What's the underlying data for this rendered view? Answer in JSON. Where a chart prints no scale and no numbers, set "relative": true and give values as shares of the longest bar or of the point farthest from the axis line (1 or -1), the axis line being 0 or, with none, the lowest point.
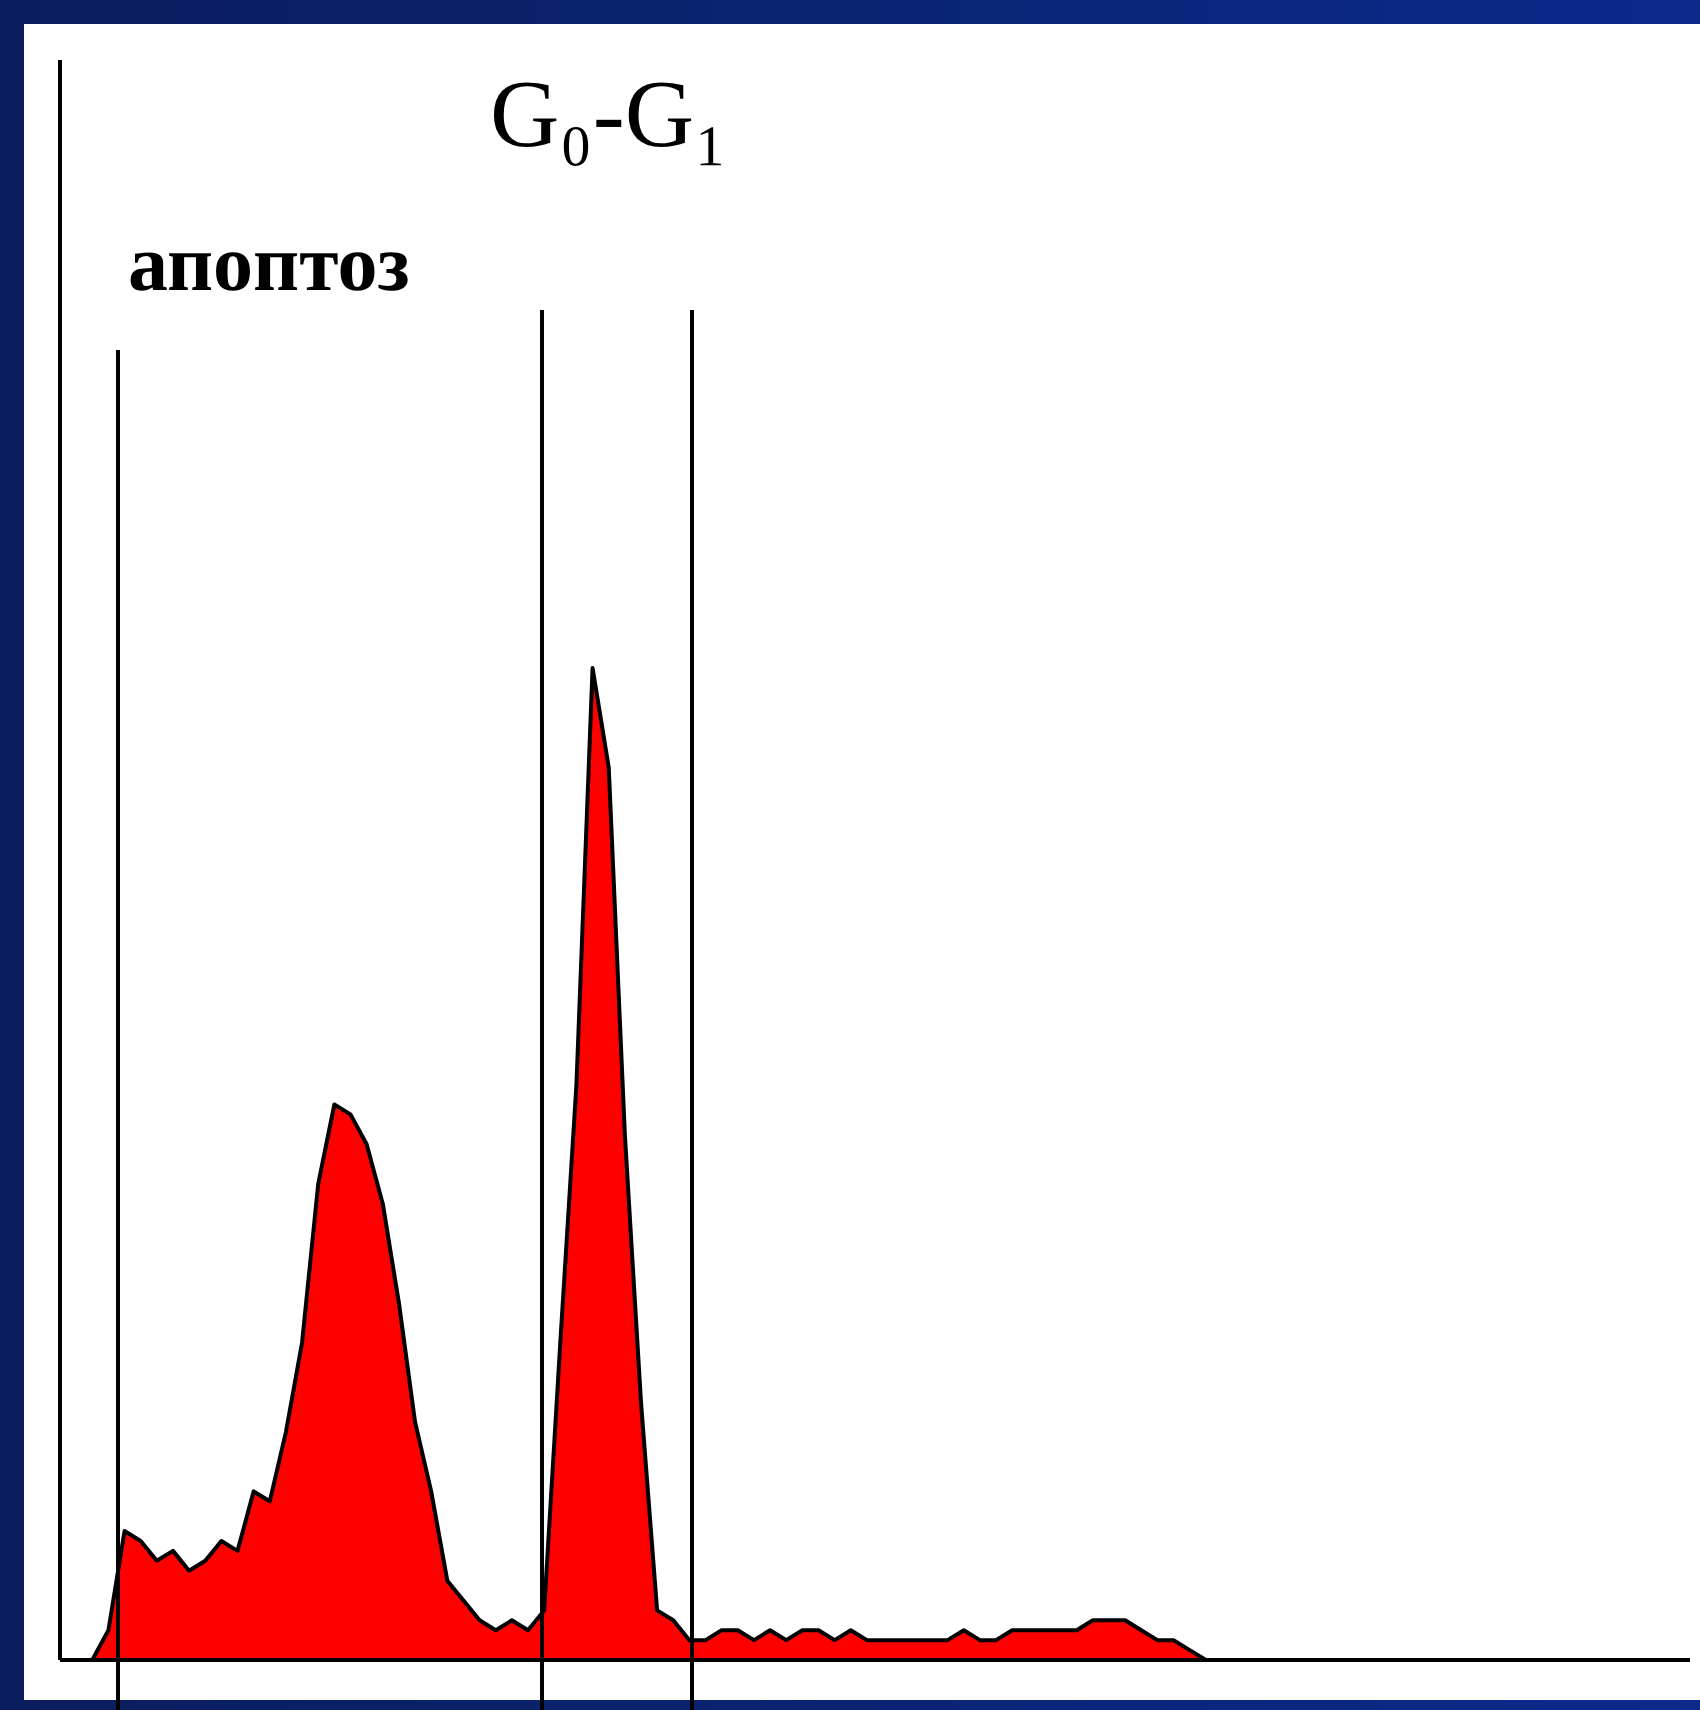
{
  "chart_data": {
    "type": "area",
    "relative": true,
    "categories": [
      null,
      null,
      null,
      null,
      null,
      null,
      null,
      null,
      null,
      null,
      null,
      null,
      null,
      null,
      null,
      null,
      null,
      null,
      null,
      null,
      null,
      null,
      null,
      null,
      null,
      null,
      null,
      null,
      null,
      null,
      null,
      null,
      null,
      null,
      null,
      null,
      null,
      null,
      null,
      null,
      null,
      null,
      null,
      null,
      null,
      null,
      null,
      null,
      null,
      null,
      null,
      null,
      null,
      null,
      null,
      null,
      null,
      null,
      null,
      null,
      null,
      null,
      null,
      null,
      null,
      null,
      null,
      null,
      null,
      null,
      null,
      null,
      null,
      null,
      null,
      null,
      null,
      null,
      null,
      null,
      null,
      null,
      null,
      null,
      null,
      null,
      null,
      null,
      null,
      null,
      null,
      null,
      null,
      null,
      null,
      null,
      null,
      null,
      null,
      null,
      null,
      null
    ],
    "series": [
      {
        "color": "#ff0000",
        "values": [
          0,
          0,
          0,
          0.03,
          0.13,
          0.12,
          0.1,
          0.11,
          0.09,
          0.1,
          0.12,
          0.11,
          0.17,
          0.16,
          0.23,
          0.32,
          0.48,
          0.56,
          0.55,
          0.52,
          0.46,
          0.36,
          0.24,
          0.17,
          0.08,
          0.06,
          0.04,
          0.03,
          0.04,
          0.03,
          0.05,
          0.32,
          0.58,
          1,
          0.9,
          0.53,
          0.26,
          0.05,
          0.04,
          0.02,
          0.02,
          0.03,
          0.03,
          0.02,
          0.03,
          0.02,
          0.03,
          0.03,
          0.02,
          0.03,
          0.02,
          0.02,
          0.02,
          0.02,
          0.02,
          0.02,
          0.03,
          0.02,
          0.02,
          0.03,
          0.03,
          0.03,
          0.03,
          0.03,
          0.04,
          0.04,
          0.04,
          0.03,
          0.02,
          0.02,
          0.01,
          0,
          0,
          0,
          0,
          0,
          0,
          0,
          0,
          0,
          0,
          0,
          0,
          0,
          0,
          0,
          0,
          0,
          0,
          0,
          0,
          0,
          0,
          0,
          0,
          0,
          0,
          0,
          0,
          0,
          0,
          0
        ]
      }
    ],
    "annotations": [
      "G₀-G₁",
      "апоптоз"
    ]
  }
}
